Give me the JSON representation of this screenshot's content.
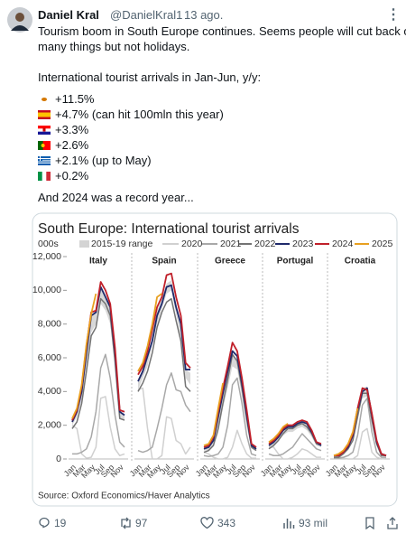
{
  "tweet": {
    "author": "Daniel Kral",
    "handle": "@DanielKral1",
    "date": "13 ago.",
    "text": [
      "Tourism boom in South Europe continues. Seems people will cut back on",
      "many things but not holidays."
    ],
    "intro": "International tourist arrivals in Jan-Jun, y/y:",
    "items": [
      "+11.5%",
      "+4.7% (can hit 100mln this year)",
      "+3.3%",
      "+2.6%",
      "+2.1% (up to May)",
      "+0.2%"
    ],
    "outro": "And 2024 was a record year...",
    "stats": {
      "replies": "19",
      "reposts": "97",
      "likes": "343",
      "views": "93 mil"
    }
  },
  "chart_data": {
    "type": "line",
    "title": "South Europe: International tourist arrivals",
    "unit": "000s",
    "source": "Source: Oxford Economics/Haver Analytics",
    "categories": [
      "Jan",
      null,
      "Mar",
      null,
      "May",
      null,
      "Jul",
      null,
      "Sep",
      null,
      "Nov",
      null
    ],
    "ylim": [
      0,
      12000
    ],
    "yticks": [
      0,
      {
        "value": 2000,
        "label": "2,000"
      },
      {
        "value": 4000,
        "label": "4,000"
      },
      {
        "value": 6000,
        "label": "6,000"
      },
      {
        "value": 8000,
        "label": "8,000"
      },
      {
        "value": 10000,
        "label": "10,000"
      },
      {
        "value": 12000,
        "label": "12,000"
      }
    ],
    "series": [
      {
        "name": "2015-19 range",
        "color": "#d4d4d4"
      },
      {
        "name": "2020",
        "color": "#d0d0d0"
      },
      {
        "name": "2021",
        "color": "#a8a8a8"
      },
      {
        "name": "2022",
        "color": "#737373"
      },
      {
        "name": "2023",
        "color": "#1f2a6b"
      },
      {
        "name": "2024",
        "color": "#c0202a"
      },
      {
        "name": "2025",
        "color": "#e8a020"
      }
    ],
    "panels": [
      {
        "title": "Italy",
        "series": [
          {
            "low": [
              2000,
              2500,
              3500,
              5500,
              7500,
              8000,
              9200,
              8800,
              8000,
              5600,
              2400,
              2300
            ],
            "high": [
              2300,
              2900,
              4200,
              6300,
              8400,
              8700,
              10200,
              9700,
              9000,
              6200,
              2800,
              2600
            ]
          },
          {
            "values": [
              2000,
              1800,
              300,
              50,
              100,
              700,
              3600,
              3700,
              1900,
              600,
              200,
              300
            ]
          },
          {
            "values": [
              300,
              300,
              400,
              600,
              1300,
              2800,
              5400,
              6200,
              4800,
              2600,
              1000,
              700
            ]
          },
          {
            "values": [
              1800,
              2200,
              3300,
              5200,
              7300,
              7800,
              9500,
              9200,
              8500,
              5800,
              2400,
              2300
            ]
          },
          {
            "values": [
              2200,
              2800,
              4000,
              6300,
              8500,
              8700,
              10200,
              9600,
              9000,
              6300,
              2800,
              2600
            ]
          },
          {
            "values": [
              2300,
              2900,
              4300,
              6700,
              8700,
              8800,
              10500,
              10000,
              9200,
              6600,
              2900,
              2800
            ]
          },
          {
            "values": [
              2400,
              3000,
              4400,
              6800,
              8600,
              9800,
              null,
              null,
              null,
              null,
              null,
              null
            ]
          }
        ]
      },
      {
        "title": "Spain",
        "series": [
          {
            "low": [
              4100,
              4800,
              5500,
              6800,
              8000,
              8900,
              9800,
              10000,
              8600,
              7200,
              4800,
              4400
            ],
            "high": [
              4700,
              5400,
              6200,
              7500,
              8800,
              9500,
              10400,
              10600,
              9200,
              7900,
              5300,
              5100
            ]
          },
          {
            "values": [
              4100,
              4200,
              1800,
              0,
              0,
              200,
              2500,
              2400,
              1100,
              900,
              300,
              700
            ]
          },
          {
            "values": [
              500,
              400,
              500,
              700,
              1800,
              3000,
              4400,
              5100,
              4100,
              4000,
              3200,
              2800
            ]
          },
          {
            "values": [
              4000,
              4500,
              5200,
              6300,
              7800,
              8700,
              9300,
              9500,
              8200,
              7000,
              4300,
              4000
            ]
          },
          {
            "values": [
              4600,
              5200,
              6100,
              7000,
              8500,
              9200,
              10200,
              10300,
              9000,
              8000,
              5300,
              5300
            ]
          },
          {
            "values": [
              5000,
              5500,
              6400,
              7700,
              9000,
              9600,
              10900,
              11000,
              9600,
              8500,
              5700,
              5400
            ]
          },
          {
            "values": [
              5200,
              5700,
              6700,
              8000,
              9600,
              9800,
              null,
              null,
              null,
              null,
              null,
              null
            ]
          }
        ]
      },
      {
        "title": "Greece",
        "series": [
          {
            "low": [
              500,
              500,
              800,
              1500,
              3000,
              4200,
              5500,
              5300,
              3700,
              1900,
              600,
              500
            ],
            "high": [
              700,
              800,
              1200,
              2300,
              3800,
              5100,
              6200,
              5900,
              4400,
              2600,
              800,
              700
            ]
          },
          {
            "values": [
              400,
              300,
              100,
              0,
              0,
              100,
              700,
              1700,
              900,
              300,
              50,
              50
            ]
          },
          {
            "values": [
              200,
              150,
              200,
              300,
              700,
              2000,
              4400,
              4800,
              3300,
              1400,
              300,
              200
            ]
          },
          {
            "values": [
              400,
              500,
              800,
              1800,
              3300,
              4700,
              6200,
              5800,
              4200,
              2400,
              700,
              500
            ]
          },
          {
            "values": [
              600,
              700,
              1100,
              2500,
              3900,
              5200,
              6400,
              6100,
              4500,
              2600,
              800,
              600
            ]
          },
          {
            "values": [
              700,
              800,
              1300,
              2800,
              4200,
              5500,
              6900,
              6400,
              4800,
              2900,
              900,
              700
            ]
          },
          {
            "values": [
              800,
              900,
              1400,
              3000,
              4500,
              null,
              null,
              null,
              null,
              null,
              null,
              null
            ]
          }
        ]
      },
      {
        "title": "Portugal",
        "series": [
          {
            "low": [
              700,
              800,
              1100,
              1400,
              1600,
              1600,
              1800,
              1900,
              1700,
              1300,
              800,
              700
            ],
            "high": [
              900,
              1100,
              1400,
              1800,
              2000,
              2000,
              2200,
              2300,
              2100,
              1600,
              1000,
              900
            ]
          },
          {
            "values": [
              700,
              700,
              300,
              0,
              0,
              100,
              300,
              600,
              500,
              300,
              100,
              100
            ]
          },
          {
            "values": [
              300,
              200,
              200,
              300,
              500,
              700,
              1100,
              1500,
              1200,
              900,
              600,
              500
            ]
          },
          {
            "values": [
              600,
              800,
              1100,
              1500,
              1800,
              1800,
              2000,
              2100,
              1900,
              1500,
              900,
              800
            ]
          },
          {
            "values": [
              800,
              1000,
              1300,
              1700,
              1900,
              1900,
              2100,
              2200,
              2100,
              1600,
              1000,
              800
            ]
          },
          {
            "values": [
              900,
              1100,
              1400,
              1800,
              2000,
              2000,
              2200,
              2300,
              2200,
              1700,
              1000,
              900
            ]
          },
          {
            "values": [
              1000,
              1200,
              1500,
              1900,
              2100,
              null,
              null,
              null,
              null,
              null,
              null,
              null
            ]
          }
        ]
      },
      {
        "title": "Croatia",
        "series": [
          {
            "low": [
              150,
              150,
              300,
              600,
              1200,
              2500,
              3600,
              3700,
              2200,
              800,
              200,
              150
            ],
            "high": [
              250,
              250,
              450,
              900,
              1700,
              3100,
              4200,
              4300,
              2900,
              1200,
              350,
              250
            ]
          },
          {
            "values": [
              100,
              100,
              50,
              0,
              0,
              200,
              1600,
              1800,
              400,
              100,
              0,
              50
            ]
          },
          {
            "values": [
              50,
              50,
              100,
              200,
              400,
              1400,
              3200,
              3600,
              1600,
              400,
              100,
              100
            ]
          },
          {
            "values": [
              100,
              100,
              300,
              600,
              1100,
              2500,
              3900,
              3900,
              2300,
              900,
              200,
              200
            ]
          },
          {
            "values": [
              200,
              200,
              400,
              700,
              1400,
              2900,
              4000,
              4200,
              2600,
              1000,
              300,
              200
            ]
          },
          {
            "values": [
              200,
              200,
              400,
              800,
              1500,
              3000,
              4200,
              4100,
              2700,
              1100,
              300,
              200
            ]
          },
          {
            "values": [
              200,
              300,
              500,
              900,
              1600,
              3000,
              null,
              null,
              null,
              null,
              null,
              null
            ]
          }
        ]
      }
    ]
  }
}
